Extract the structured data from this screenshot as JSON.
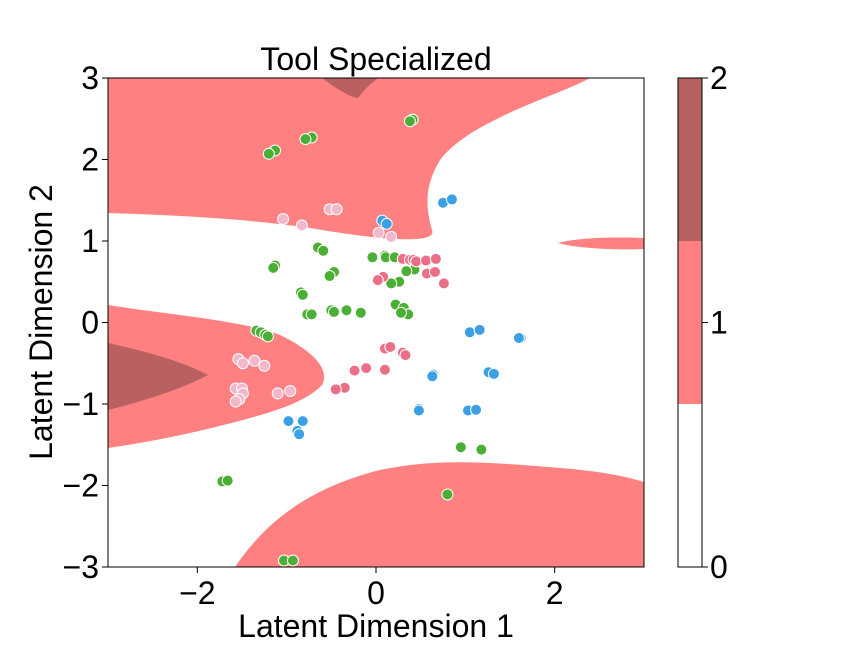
{
  "chart_data": {
    "type": "scatter",
    "title": "Tool Specialized",
    "xlabel": "Latent Dimension 1",
    "ylabel": "Latent Dimension 2",
    "xlim": [
      -3,
      3
    ],
    "ylim": [
      -3,
      3
    ],
    "xticks": [
      -2,
      0,
      2
    ],
    "yticks": [
      -3,
      -2,
      -1,
      0,
      1,
      2,
      3
    ],
    "tick_labels_x": [
      "−2",
      "0",
      "2"
    ],
    "tick_labels_y": [
      "−3",
      "−2",
      "−1",
      "0",
      "1",
      "2",
      "3"
    ],
    "grid": false,
    "background": {
      "type": "decision_regions",
      "levels": [
        0,
        1,
        2
      ],
      "colors": {
        "0": "#ffffff",
        "1": "#ff8080",
        "2": "#b96060"
      }
    },
    "colorbar": {
      "ticks": [
        0,
        1,
        2
      ],
      "tick_labels": [
        "0",
        "1",
        "2"
      ],
      "colors": [
        "#ffffff",
        "#ff8080",
        "#b96060"
      ]
    },
    "series_colors": {
      "green": "#4caf35",
      "blue": "#3ba0e6",
      "pink": "#ec6f87",
      "lightpink": "#f4b7cc"
    },
    "series": [
      {
        "color": "green",
        "points": [
          [
            -1.13,
            2.11
          ],
          [
            -1.2,
            2.07
          ],
          [
            -0.72,
            2.27
          ],
          [
            -0.79,
            2.25
          ],
          [
            0.41,
            2.49
          ],
          [
            0.38,
            2.47
          ],
          [
            -0.65,
            0.92
          ],
          [
            -0.59,
            0.88
          ],
          [
            -1.13,
            0.7
          ],
          [
            -1.15,
            0.67
          ],
          [
            -0.47,
            0.62
          ],
          [
            -0.52,
            0.57
          ],
          [
            -0.04,
            0.8
          ],
          [
            0.1,
            0.82
          ],
          [
            0.11,
            0.8
          ],
          [
            0.21,
            0.8
          ],
          [
            0.43,
            0.75
          ],
          [
            0.43,
            0.65
          ],
          [
            0.34,
            0.63
          ],
          [
            0.26,
            0.5
          ],
          [
            0.17,
            0.48
          ],
          [
            -0.84,
            0.37
          ],
          [
            -0.82,
            0.34
          ],
          [
            -0.77,
            0.1
          ],
          [
            -0.72,
            0.1
          ],
          [
            -0.5,
            0.15
          ],
          [
            -0.47,
            0.13
          ],
          [
            -0.33,
            0.15
          ],
          [
            -0.17,
            0.12
          ],
          [
            0.22,
            0.22
          ],
          [
            0.31,
            0.18
          ],
          [
            0.36,
            0.1
          ],
          [
            0.28,
            0.12
          ],
          [
            -1.34,
            -0.1
          ],
          [
            -1.29,
            -0.12
          ],
          [
            -1.24,
            -0.15
          ],
          [
            -1.21,
            -0.17
          ],
          [
            -1.72,
            -1.95
          ],
          [
            -1.66,
            -1.94
          ],
          [
            0.95,
            -1.53
          ],
          [
            1.18,
            -1.56
          ],
          [
            0.8,
            -2.11
          ],
          [
            -1.03,
            -2.92
          ],
          [
            -0.93,
            -2.92
          ]
        ]
      },
      {
        "color": "blue",
        "points": [
          [
            0.75,
            1.47
          ],
          [
            0.85,
            1.51
          ],
          [
            0.07,
            1.25
          ],
          [
            0.12,
            1.21
          ],
          [
            1.05,
            -0.12
          ],
          [
            1.16,
            -0.09
          ],
          [
            1.62,
            -0.19
          ],
          [
            1.6,
            -0.19
          ],
          [
            0.64,
            -0.64
          ],
          [
            0.63,
            -0.66
          ],
          [
            1.26,
            -0.61
          ],
          [
            1.32,
            -0.63
          ],
          [
            0.48,
            -1.06
          ],
          [
            0.48,
            -1.08
          ],
          [
            1.03,
            -1.08
          ],
          [
            1.12,
            -1.07
          ],
          [
            -0.98,
            -1.21
          ],
          [
            -0.82,
            -1.21
          ],
          [
            -0.88,
            -1.33
          ],
          [
            -0.86,
            -1.37
          ]
        ]
      },
      {
        "color": "pink",
        "points": [
          [
            0.3,
            0.78
          ],
          [
            0.38,
            0.77
          ],
          [
            0.42,
            0.77
          ],
          [
            0.45,
            0.75
          ],
          [
            0.56,
            0.76
          ],
          [
            0.67,
            0.78
          ],
          [
            0.57,
            0.6
          ],
          [
            0.66,
            0.62
          ],
          [
            0.08,
            0.56
          ],
          [
            0.02,
            0.52
          ],
          [
            0.76,
            0.48
          ],
          [
            0.1,
            -0.32
          ],
          [
            0.16,
            -0.3
          ],
          [
            0.3,
            -0.37
          ],
          [
            0.33,
            -0.4
          ],
          [
            -0.11,
            -0.56
          ],
          [
            -0.24,
            -0.59
          ],
          [
            0.1,
            -0.58
          ],
          [
            -0.35,
            -0.8
          ],
          [
            -0.45,
            -0.82
          ]
        ]
      },
      {
        "color": "lightpink",
        "points": [
          [
            -1.04,
            1.27
          ],
          [
            -0.83,
            1.19
          ],
          [
            -0.52,
            1.39
          ],
          [
            -0.44,
            1.39
          ],
          [
            0.03,
            1.1
          ],
          [
            0.17,
            1.05
          ],
          [
            -1.54,
            -0.45
          ],
          [
            -1.49,
            -0.5
          ],
          [
            -1.36,
            -0.47
          ],
          [
            -1.25,
            -0.53
          ],
          [
            -1.57,
            -0.81
          ],
          [
            -1.5,
            -0.81
          ],
          [
            -1.49,
            -0.87
          ],
          [
            -1.53,
            -0.94
          ],
          [
            -1.57,
            -0.97
          ],
          [
            -1.1,
            -0.87
          ],
          [
            -0.96,
            -0.84
          ]
        ]
      }
    ]
  }
}
